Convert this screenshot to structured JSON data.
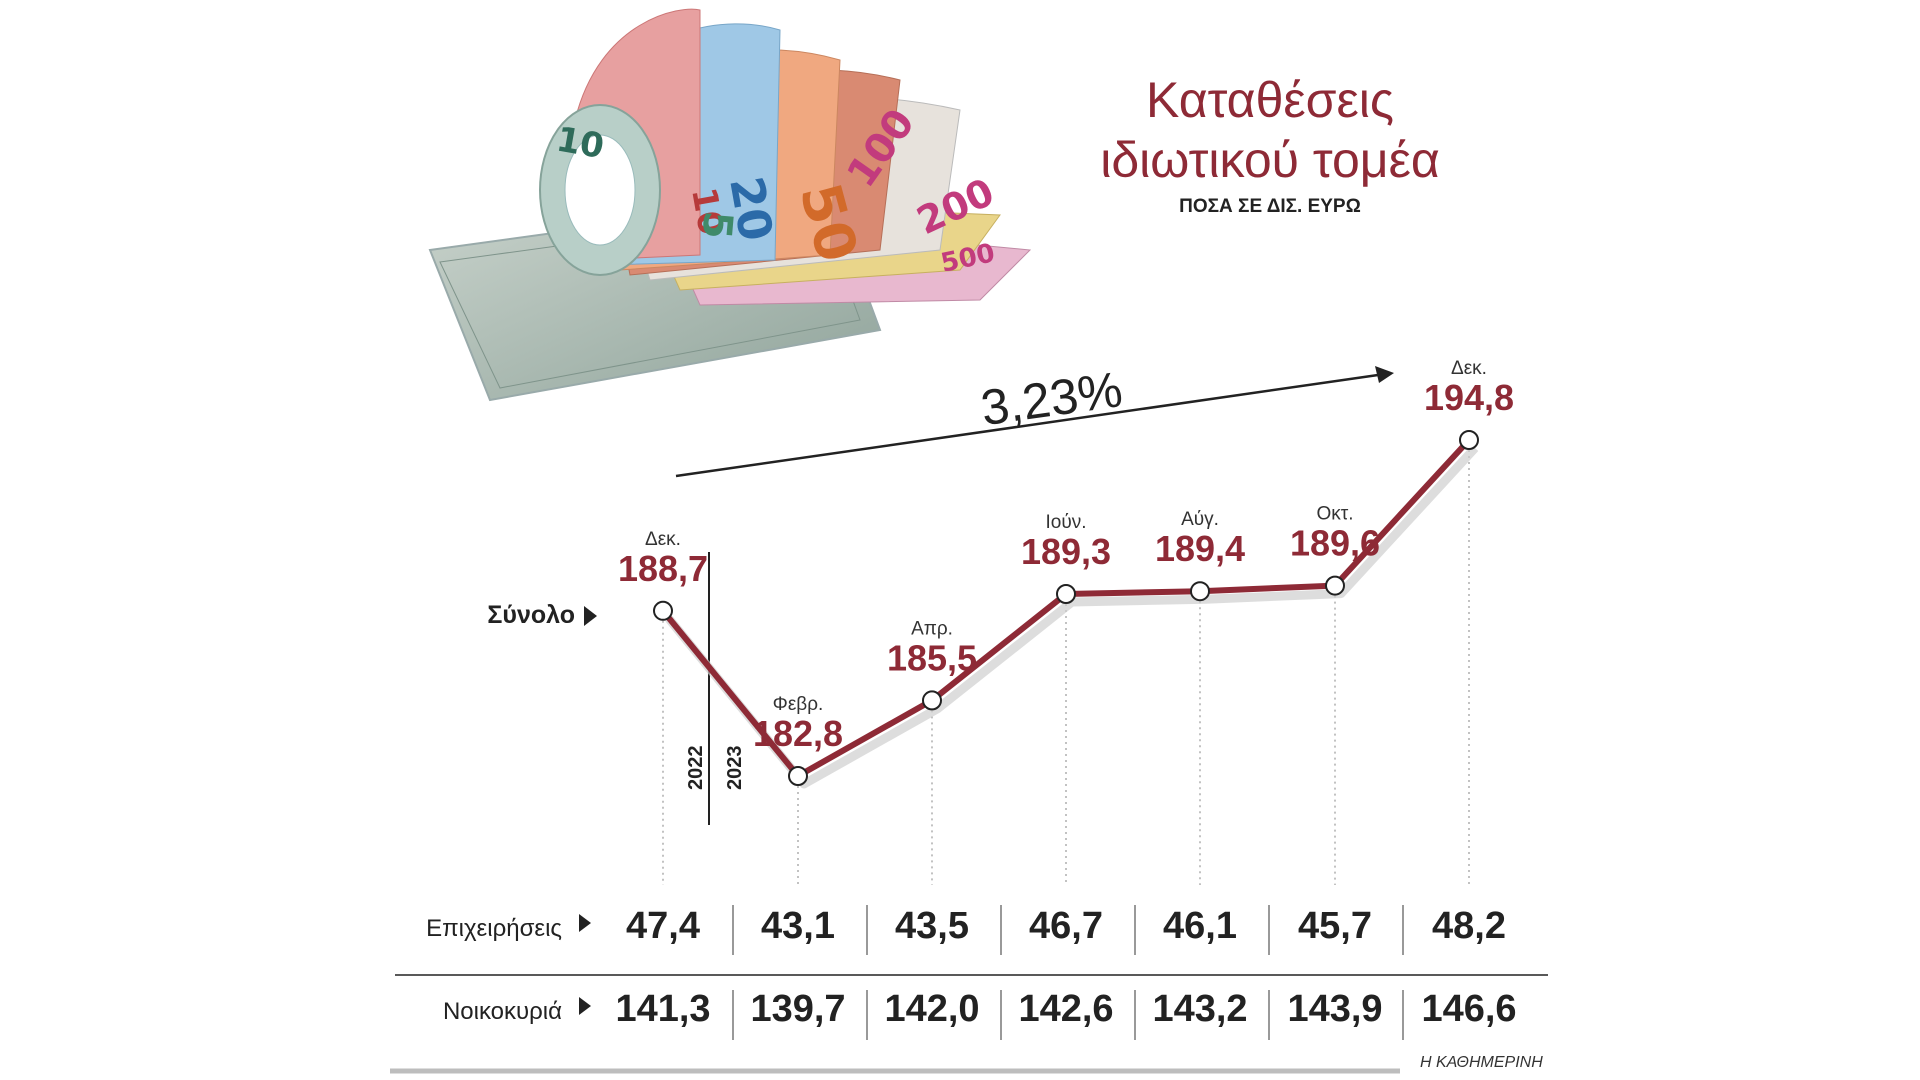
{
  "header": {
    "title_line1": "Καταθέσεις",
    "title_line2": "ιδιωτικού τομέα",
    "subtitle": "ΠΟΣΑ ΣΕ ΔΙΣ. ΕΥΡΩ"
  },
  "source": "Η ΚΑΘΗΜΕΡΙΝΗ",
  "colors": {
    "accent": "#8e2a36",
    "text": "#222222",
    "grid": "#9a9a9a"
  },
  "illustration": {
    "denominations": [
      "5",
      "10",
      "20",
      "50",
      "100",
      "200",
      "500"
    ]
  },
  "chart_data": {
    "type": "line",
    "title": "Καταθέσεις ιδιωτικού τομέα",
    "unit": "ΠΟΣΑ ΣΕ ΔΙΣ. ΕΥΡΩ",
    "categories": [
      "Δεκ.",
      "Φεβρ.",
      "Απρ.",
      "Ιούν.",
      "Αύγ.",
      "Οκτ.",
      "Δεκ."
    ],
    "year_labels": [
      "2022",
      "2023"
    ],
    "series": [
      {
        "name": "Σύνολο",
        "values": [
          "188,7",
          "182,8",
          "185,5",
          "189,3",
          "189,4",
          "189,6",
          "194,8"
        ]
      }
    ],
    "table": [
      {
        "label": "Επιχειρήσεις",
        "values": [
          "47,4",
          "43,1",
          "43,5",
          "46,7",
          "46,1",
          "45,7",
          "48,2"
        ]
      },
      {
        "label": "Νοικοκυριά",
        "values": [
          "141,3",
          "139,7",
          "142,0",
          "142,6",
          "143,2",
          "143,9",
          "146,6"
        ]
      }
    ],
    "annotation": "3,23%",
    "grid": false,
    "legend": "none"
  }
}
